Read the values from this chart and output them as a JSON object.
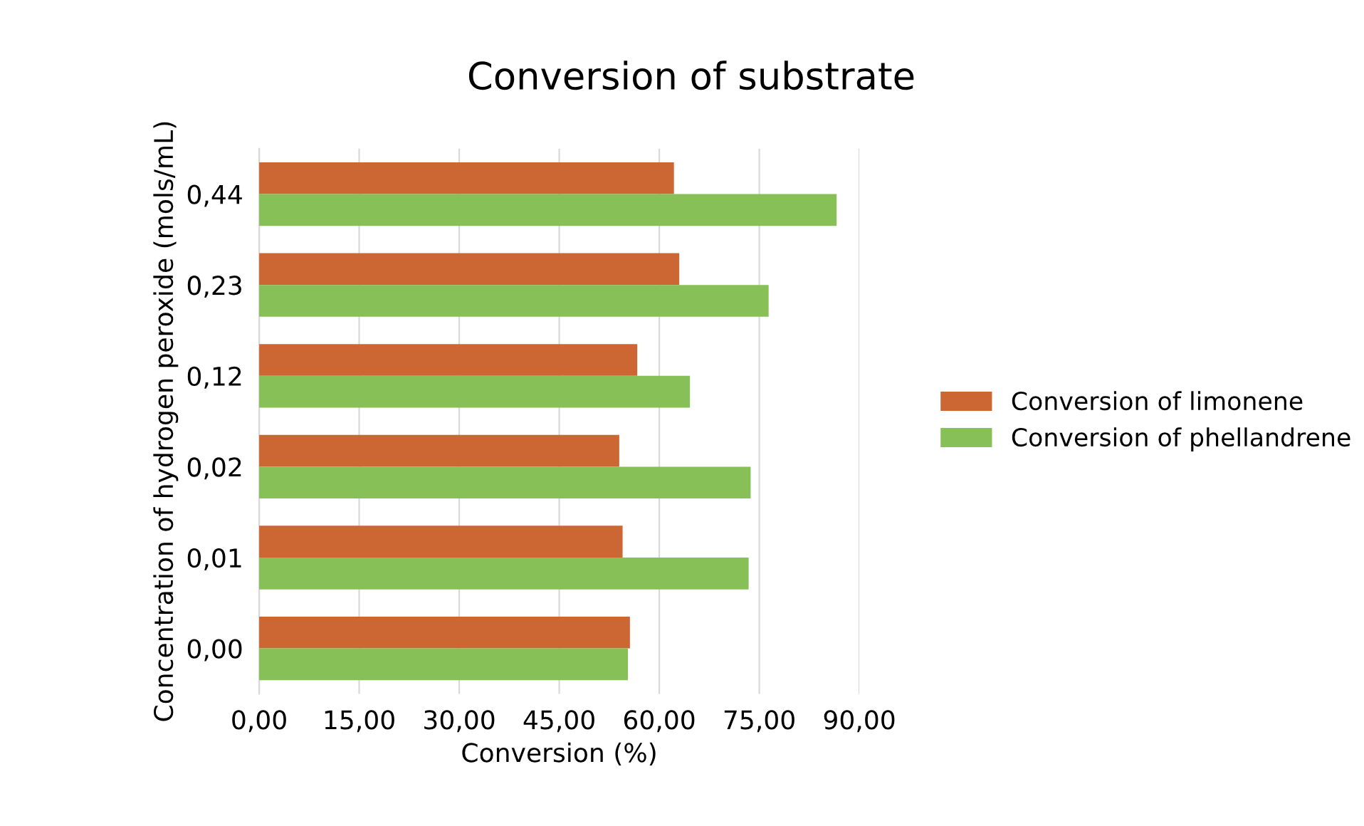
{
  "chart_data": {
    "type": "bar",
    "orientation": "horizontal",
    "title": "Conversion of substrate",
    "xlabel": "Conversion (%)",
    "ylabel": "Concentration of hydrogen peroxide (mols/mL)",
    "categories": [
      "0,44",
      "0,23",
      "0,12",
      "0,02",
      "0,01",
      "0,00"
    ],
    "series": [
      {
        "name": "Conversion of limonene",
        "color": "#cc6633",
        "values": [
          62.2,
          63.0,
          56.7,
          54.0,
          54.5,
          55.6
        ]
      },
      {
        "name": "Conversion of phellandrene",
        "color": "#86c057",
        "values": [
          86.6,
          76.4,
          64.6,
          73.7,
          73.4,
          55.3
        ]
      }
    ],
    "xlim": [
      0,
      90
    ],
    "xticks": [
      {
        "value": 0,
        "label": "0,00"
      },
      {
        "value": 15,
        "label": "15,00"
      },
      {
        "value": 30,
        "label": "30,00"
      },
      {
        "value": 45,
        "label": "45,00"
      },
      {
        "value": 60,
        "label": "60,00"
      },
      {
        "value": 75,
        "label": "75,00"
      },
      {
        "value": 90,
        "label": "90,00"
      }
    ],
    "grid": "x",
    "legend": "right"
  }
}
